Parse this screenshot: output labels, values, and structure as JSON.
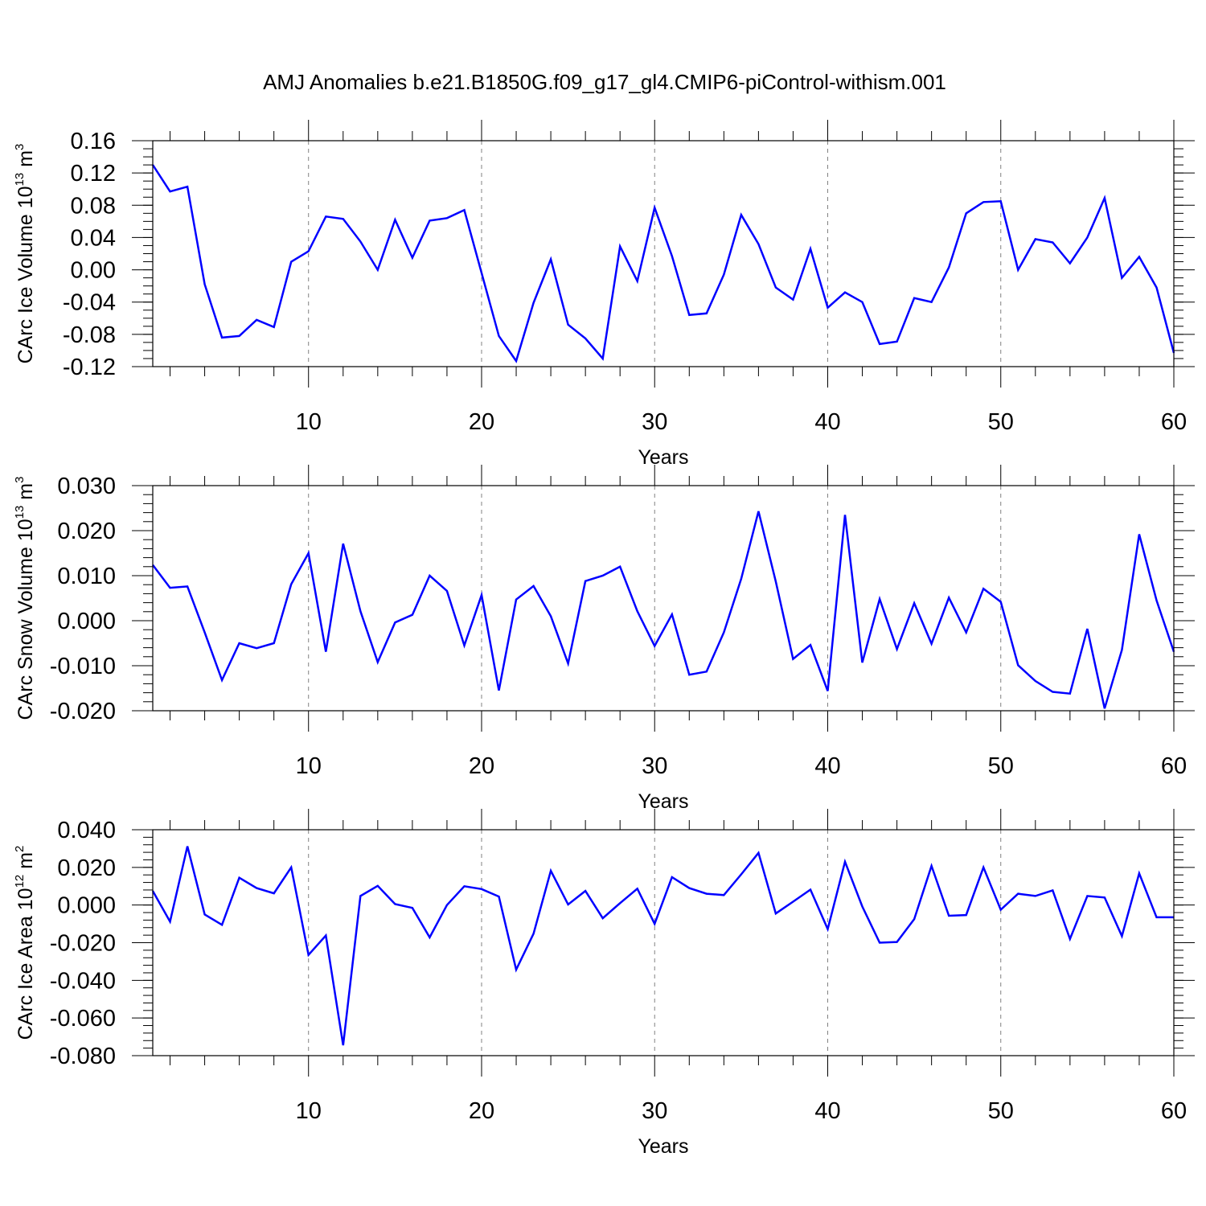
{
  "title": "AMJ Anomalies b.e21.B1850G.f09_g17_gl4.CMIP6-piControl-withism.001",
  "colors": {
    "line": "#0000ff",
    "axis": "#000000",
    "grid": "#808080",
    "background": "#ffffff"
  },
  "chart_data": [
    {
      "type": "line",
      "ylabel": {
        "text": "CArc Ice Volume 10",
        "exponent": "13",
        "unit": " m",
        "unit_exponent": "3"
      },
      "xlabel": "Years",
      "xlim": [
        1,
        60
      ],
      "ylim": [
        -0.12,
        0.16
      ],
      "x_ticks": [
        10,
        20,
        30,
        40,
        50,
        60
      ],
      "y_ticks": [
        "0.16",
        "0.12",
        "0.08",
        "0.04",
        "0.00",
        "-0.04",
        "-0.08",
        "-0.12"
      ],
      "y_tick_values": [
        0.16,
        0.12,
        0.08,
        0.04,
        0.0,
        -0.04,
        -0.08,
        -0.12
      ],
      "y_minor_step": 0.01,
      "grid": "vertical dashed at major x ticks",
      "series": [
        {
          "x": [
            1,
            2,
            3,
            4,
            5,
            6,
            7,
            8,
            9,
            10,
            11,
            12,
            13,
            14,
            15,
            16,
            17,
            18,
            19,
            20,
            21,
            22,
            23,
            24,
            25,
            26,
            27,
            28,
            29,
            30,
            31,
            32,
            33,
            34,
            35,
            36,
            37,
            38,
            39,
            40,
            41,
            42,
            43,
            44,
            45,
            46,
            47,
            48,
            49,
            50,
            51,
            52,
            53,
            54,
            55,
            56,
            57,
            58,
            59,
            60
          ],
          "values": [
            0.13,
            0.097,
            0.103,
            -0.018,
            -0.084,
            -0.082,
            -0.062,
            -0.071,
            0.01,
            0.023,
            0.066,
            0.063,
            0.035,
            0.0,
            0.062,
            0.015,
            0.061,
            0.064,
            0.074,
            -0.004,
            -0.082,
            -0.113,
            -0.041,
            0.013,
            -0.068,
            -0.085,
            -0.11,
            0.029,
            -0.014,
            0.077,
            0.017,
            -0.056,
            -0.054,
            -0.006,
            0.068,
            0.032,
            -0.022,
            -0.037,
            0.026,
            -0.047,
            -0.028,
            -0.04,
            -0.092,
            -0.089,
            -0.035,
            -0.04,
            0.003,
            0.07,
            0.084,
            0.085,
            0.0,
            0.038,
            0.034,
            0.008,
            0.04,
            0.089,
            -0.01,
            0.016,
            -0.022,
            -0.103
          ]
        }
      ]
    },
    {
      "type": "line",
      "ylabel": {
        "text": "CArc Snow Volume 10",
        "exponent": "13",
        "unit": " m",
        "unit_exponent": "3"
      },
      "xlabel": "Years",
      "xlim": [
        1,
        60
      ],
      "ylim": [
        -0.02,
        0.03
      ],
      "x_ticks": [
        10,
        20,
        30,
        40,
        50,
        60
      ],
      "y_ticks": [
        "0.030",
        "0.020",
        "0.010",
        "0.000",
        "-0.010",
        "-0.020"
      ],
      "y_tick_values": [
        0.03,
        0.02,
        0.01,
        0.0,
        -0.01,
        -0.02
      ],
      "y_minor_step": 0.002,
      "grid": "vertical dashed at major x ticks",
      "series": [
        {
          "x": [
            1,
            2,
            3,
            4,
            5,
            6,
            7,
            8,
            9,
            10,
            11,
            12,
            13,
            14,
            15,
            16,
            17,
            18,
            19,
            20,
            21,
            22,
            23,
            24,
            25,
            26,
            27,
            28,
            29,
            30,
            31,
            32,
            33,
            34,
            35,
            36,
            37,
            38,
            39,
            40,
            41,
            42,
            43,
            44,
            45,
            46,
            47,
            48,
            49,
            50,
            51,
            52,
            53,
            54,
            55,
            56,
            57,
            58,
            59,
            60
          ],
          "values": [
            0.0124,
            0.0073,
            0.0076,
            -0.0026,
            -0.0132,
            -0.005,
            -0.0061,
            -0.005,
            0.0081,
            0.015,
            -0.0069,
            0.0171,
            0.0021,
            -0.0092,
            -0.0004,
            0.0013,
            0.01,
            0.0066,
            -0.0055,
            0.0057,
            -0.0155,
            0.0047,
            0.0077,
            0.001,
            -0.0095,
            0.0088,
            0.01,
            0.012,
            0.0021,
            -0.0056,
            0.0014,
            -0.012,
            -0.0113,
            -0.0026,
            0.0093,
            0.0243,
            0.0087,
            -0.0085,
            -0.0054,
            -0.0156,
            0.0235,
            -0.0093,
            0.0048,
            -0.0063,
            0.0039,
            -0.0051,
            0.0051,
            -0.0026,
            0.0071,
            0.0042,
            -0.0099,
            -0.0134,
            -0.0158,
            -0.0162,
            -0.0018,
            -0.0195,
            -0.0065,
            0.0192,
            0.0045,
            -0.0069
          ]
        }
      ]
    },
    {
      "type": "line",
      "ylabel": {
        "text": "CArc Ice Area 10",
        "exponent": "12",
        "unit": " m",
        "unit_exponent": "2"
      },
      "xlabel": "Years",
      "xlim": [
        1,
        60
      ],
      "ylim": [
        -0.08,
        0.04
      ],
      "x_ticks": [
        10,
        20,
        30,
        40,
        50,
        60
      ],
      "y_ticks": [
        "0.040",
        "0.020",
        "0.000",
        "-0.020",
        "-0.040",
        "-0.060",
        "-0.080"
      ],
      "y_tick_values": [
        0.04,
        0.02,
        0.0,
        -0.02,
        -0.04,
        -0.06,
        -0.08
      ],
      "y_minor_step": 0.004,
      "grid": "vertical dashed at major x ticks",
      "series": [
        {
          "x": [
            1,
            2,
            3,
            4,
            5,
            6,
            7,
            8,
            9,
            10,
            11,
            12,
            13,
            14,
            15,
            16,
            17,
            18,
            19,
            20,
            21,
            22,
            23,
            24,
            25,
            26,
            27,
            28,
            29,
            30,
            31,
            32,
            33,
            34,
            35,
            36,
            37,
            38,
            39,
            40,
            41,
            42,
            43,
            44,
            45,
            46,
            47,
            48,
            49,
            50,
            51,
            52,
            53,
            54,
            55,
            56,
            57,
            58,
            59,
            60
          ],
          "values": [
            0.0075,
            -0.0088,
            0.0312,
            -0.005,
            -0.0105,
            0.0145,
            0.009,
            0.0062,
            0.02,
            -0.0265,
            -0.0162,
            -0.0745,
            0.0048,
            0.0102,
            0.0005,
            -0.0015,
            -0.0172,
            0.0,
            0.01,
            0.0085,
            0.0045,
            -0.0343,
            -0.0152,
            0.0182,
            0.0003,
            0.0075,
            -0.007,
            0.001,
            0.0087,
            -0.01,
            0.0148,
            0.009,
            0.006,
            0.0053,
            0.0163,
            0.0277,
            -0.0045,
            0.0018,
            0.0082,
            -0.0128,
            0.023,
            -0.0008,
            -0.02,
            -0.0196,
            -0.0075,
            0.0208,
            -0.0057,
            -0.0053,
            0.02,
            -0.0025,
            0.006,
            0.0048,
            0.0078,
            -0.018,
            0.0048,
            0.004,
            -0.0165,
            0.0168,
            -0.0065,
            -0.0065
          ]
        }
      ]
    }
  ]
}
